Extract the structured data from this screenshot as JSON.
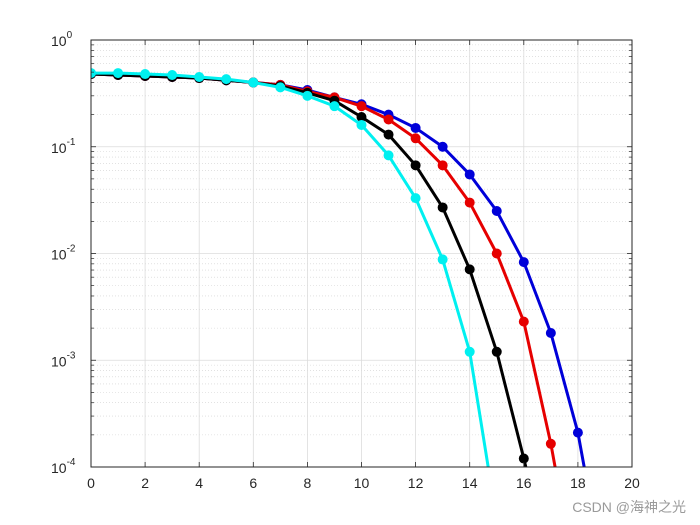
{
  "chart_data": {
    "type": "line",
    "title": "",
    "xlabel": "",
    "ylabel": "",
    "xlim": [
      0,
      20
    ],
    "ylim": [
      0.0001,
      1
    ],
    "yscale": "log",
    "grid": true,
    "minor_grid": true,
    "x_ticks": [
      "0",
      "2",
      "4",
      "6",
      "8",
      "10",
      "12",
      "14",
      "16",
      "18",
      "20"
    ],
    "y_ticks": [
      {
        "base": "10",
        "exp": "-4"
      },
      {
        "base": "10",
        "exp": "-3"
      },
      {
        "base": "10",
        "exp": "-2"
      },
      {
        "base": "10",
        "exp": "-1"
      },
      {
        "base": "10",
        "exp": "0"
      }
    ],
    "series": [
      {
        "color": "#0000d9",
        "x": [
          0,
          1,
          2,
          3,
          4,
          5,
          6,
          7,
          8,
          9,
          10,
          11,
          12,
          13,
          14,
          15,
          16,
          17,
          18,
          18.5
        ],
        "y": [
          0.48,
          0.47,
          0.46,
          0.45,
          0.44,
          0.42,
          0.4,
          0.38,
          0.34,
          0.29,
          0.25,
          0.2,
          0.15,
          0.1,
          0.055,
          0.025,
          0.0083,
          0.0018,
          0.00021,
          4.26e-05
        ]
      },
      {
        "color": "#e60000",
        "x": [
          0,
          1,
          2,
          3,
          4,
          5,
          6,
          7,
          8,
          9,
          10,
          11,
          12,
          13,
          14,
          15,
          16,
          17,
          17.5
        ],
        "y": [
          0.48,
          0.47,
          0.46,
          0.45,
          0.44,
          0.42,
          0.4,
          0.38,
          0.33,
          0.29,
          0.24,
          0.18,
          0.12,
          0.067,
          0.03,
          0.01,
          0.0023,
          0.000165,
          3.34e-05
        ]
      },
      {
        "color": "#000000",
        "x": [
          0,
          1,
          2,
          3,
          4,
          5,
          6,
          7,
          8,
          9,
          10,
          11,
          12,
          13,
          14,
          15,
          16,
          16.5
        ],
        "y": [
          0.48,
          0.47,
          0.46,
          0.45,
          0.44,
          0.42,
          0.4,
          0.37,
          0.32,
          0.27,
          0.19,
          0.13,
          0.067,
          0.027,
          0.0071,
          0.0012,
          0.00012,
          3.54e-05
        ]
      },
      {
        "color": "#00f0f0",
        "x": [
          0,
          1,
          2,
          3,
          4,
          5,
          6,
          7,
          8,
          9,
          10,
          11,
          12,
          13,
          14,
          14.8
        ],
        "y": [
          0.49,
          0.49,
          0.48,
          0.47,
          0.45,
          0.43,
          0.4,
          0.36,
          0.3,
          0.24,
          0.16,
          0.083,
          0.033,
          0.0088,
          0.0012,
          6.54e-05
        ]
      }
    ]
  },
  "watermark": "CSDN @海神之光"
}
